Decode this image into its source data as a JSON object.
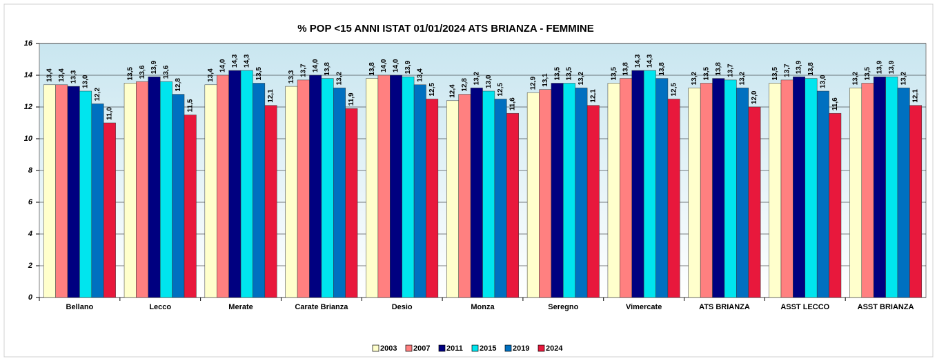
{
  "chart_data": {
    "type": "bar",
    "title": "% POP <15 ANNI ISTAT 01/01/2024  ATS BRIANZA - FEMMINE",
    "categories": [
      "Bellano",
      "Lecco",
      "Merate",
      "Carate Brianza",
      "Desio",
      "Monza",
      "Seregno",
      "Vimercate",
      "ATS BRIANZA",
      "ASST LECCO",
      "ASST BRIANZA"
    ],
    "series": [
      {
        "name": "2003",
        "color": "#ffffcc",
        "values": [
          13.4,
          13.5,
          13.4,
          13.3,
          13.8,
          12.4,
          12.9,
          13.5,
          13.2,
          13.5,
          13.2
        ],
        "value_labels": [
          "13,4",
          "13,5",
          "13,4",
          "13,3",
          "13,8",
          "12,4",
          "12,9",
          "13,5",
          "13,2",
          "13,5",
          "13,2"
        ]
      },
      {
        "name": "2007",
        "color": "#ff8080",
        "values": [
          13.4,
          13.6,
          14.0,
          13.7,
          14.0,
          12.8,
          13.1,
          13.8,
          13.5,
          13.7,
          13.5
        ],
        "value_labels": [
          "13,4",
          "13,6",
          "14,0",
          "13,7",
          "14,0",
          "12,8",
          "13,1",
          "13,8",
          "13,5",
          "13,7",
          "13,5"
        ]
      },
      {
        "name": "2011",
        "color": "#000080",
        "values": [
          13.3,
          13.9,
          14.3,
          14.0,
          14.0,
          13.2,
          13.5,
          14.3,
          13.8,
          13.9,
          13.9
        ],
        "value_labels": [
          "13,3",
          "13,9",
          "14,3",
          "14,0",
          "14,0",
          "13,2",
          "13,5",
          "14,3",
          "13,8",
          "13,9",
          "13,9"
        ]
      },
      {
        "name": "2015",
        "color": "#00e5ee",
        "values": [
          13.0,
          13.6,
          14.3,
          13.8,
          13.9,
          13.0,
          13.5,
          14.3,
          13.7,
          13.8,
          13.9
        ],
        "value_labels": [
          "13,0",
          "13,6",
          "14,3",
          "13,8",
          "13,9",
          "13,0",
          "13,5",
          "14,3",
          "13,7",
          "13,8",
          "13,9"
        ]
      },
      {
        "name": "2019",
        "color": "#0070c0",
        "values": [
          12.2,
          12.8,
          13.5,
          13.2,
          13.4,
          12.5,
          13.2,
          13.8,
          13.2,
          13.0,
          13.2
        ],
        "value_labels": [
          "12,2",
          "12,8",
          "13,5",
          "13,2",
          "13,4",
          "12,5",
          "13,2",
          "13,8",
          "13,2",
          "13,0",
          "13,2"
        ]
      },
      {
        "name": "2024",
        "color": "#e8183c",
        "values": [
          11.0,
          11.5,
          12.1,
          11.9,
          12.5,
          11.6,
          12.1,
          12.5,
          12.0,
          11.6,
          12.1
        ],
        "value_labels": [
          "11,0",
          "11,5",
          "12,1",
          "11,9",
          "12,5",
          "11,6",
          "12,1",
          "12,5",
          "12,0",
          "11,6",
          "12,1"
        ]
      }
    ],
    "ylim": [
      0,
      16
    ],
    "yticks": [
      0,
      2,
      4,
      6,
      8,
      10,
      12,
      14,
      16
    ],
    "grid": true,
    "legend": "bottom"
  }
}
